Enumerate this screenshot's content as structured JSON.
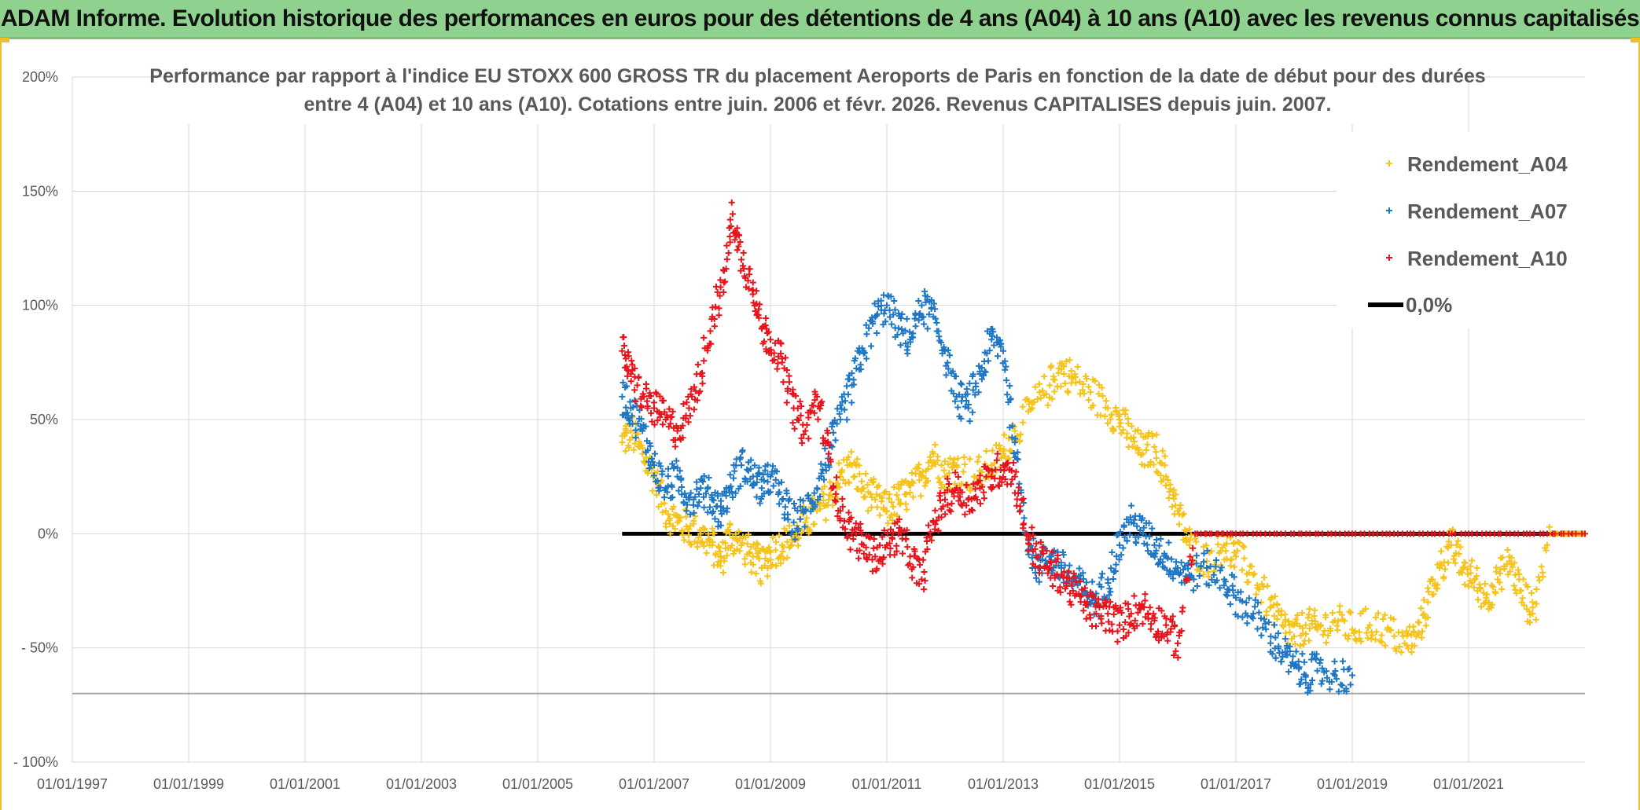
{
  "header": {
    "banner": "ADAM Informe. Evolution historique des performances en euros pour des détentions de 4 ans (A04) à 10 ans (A10) avec les revenus connus capitalisés"
  },
  "colors": {
    "banner_bg": "#8fd18f",
    "a04": "#f5c319",
    "a07": "#1f77c4",
    "a10": "#e8141c",
    "zero": "#000000",
    "grid": "#d9d9d9"
  },
  "chart_data": {
    "type": "scatter",
    "title_lines": [
      "Performance par rapport à l'indice EU STOXX 600 GROSS TR  du placement Aeroports de Paris en fonction de la date de début pour des durées",
      "entre 4 (A04) et 10 ans (A10). Cotations entre juin. 2006 et févr. 2026. Revenus CAPITALISES depuis juin. 2007."
    ],
    "x_range": [
      1997.0,
      2023.0
    ],
    "x_ticks": [
      {
        "value": 1997,
        "label": "01/01/1997"
      },
      {
        "value": 1999,
        "label": "01/01/1999"
      },
      {
        "value": 2001,
        "label": "01/01/2001"
      },
      {
        "value": 2003,
        "label": "01/01/2003"
      },
      {
        "value": 2005,
        "label": "01/01/2005"
      },
      {
        "value": 2007,
        "label": "01/01/2007"
      },
      {
        "value": 2009,
        "label": "01/01/2009"
      },
      {
        "value": 2011,
        "label": "01/01/2011"
      },
      {
        "value": 2013,
        "label": "01/01/2013"
      },
      {
        "value": 2015,
        "label": "01/01/2015"
      },
      {
        "value": 2017,
        "label": "01/01/2017"
      },
      {
        "value": 2019,
        "label": "01/01/2019"
      },
      {
        "value": 2021,
        "label": "01/01/2021"
      }
    ],
    "y_range": [
      -100,
      200
    ],
    "y_ticks": [
      {
        "value": 200,
        "label": "200%"
      },
      {
        "value": 150,
        "label": "150%"
      },
      {
        "value": 100,
        "label": "100%"
      },
      {
        "value": 50,
        "label": "50%"
      },
      {
        "value": 0,
        "label": "0%"
      },
      {
        "value": -50,
        "label": "- 50%"
      },
      {
        "value": -100,
        "label": "- 100%"
      }
    ],
    "extra_hline": -70,
    "legend_position": "top-right",
    "series": [
      {
        "name": "Rendement_A04",
        "color_key": "a04",
        "points": [
          [
            2006.45,
            40
          ],
          [
            2006.6,
            45
          ],
          [
            2006.8,
            35
          ],
          [
            2007.0,
            25
          ],
          [
            2007.2,
            10
          ],
          [
            2007.4,
            5
          ],
          [
            2007.6,
            2
          ],
          [
            2007.8,
            0
          ],
          [
            2008.0,
            -5
          ],
          [
            2008.15,
            -12
          ],
          [
            2008.3,
            0
          ],
          [
            2008.5,
            -5
          ],
          [
            2008.7,
            -10
          ],
          [
            2008.85,
            -15
          ],
          [
            2009.0,
            -8
          ],
          [
            2009.2,
            -5
          ],
          [
            2009.4,
            -2
          ],
          [
            2009.6,
            5
          ],
          [
            2009.8,
            10
          ],
          [
            2010.0,
            15
          ],
          [
            2010.2,
            25
          ],
          [
            2010.4,
            30
          ],
          [
            2010.6,
            20
          ],
          [
            2010.8,
            15
          ],
          [
            2011.0,
            10
          ],
          [
            2011.2,
            15
          ],
          [
            2011.4,
            18
          ],
          [
            2011.6,
            25
          ],
          [
            2011.8,
            35
          ],
          [
            2012.0,
            25
          ],
          [
            2012.2,
            30
          ],
          [
            2012.5,
            25
          ],
          [
            2012.8,
            30
          ],
          [
            2013.0,
            35
          ],
          [
            2013.2,
            45
          ],
          [
            2013.5,
            55
          ],
          [
            2013.8,
            65
          ],
          [
            2014.0,
            72
          ],
          [
            2014.2,
            68
          ],
          [
            2014.5,
            62
          ],
          [
            2014.8,
            55
          ],
          [
            2015.0,
            50
          ],
          [
            2015.2,
            42
          ],
          [
            2015.4,
            35
          ],
          [
            2015.6,
            38
          ],
          [
            2015.8,
            25
          ],
          [
            2016.0,
            10
          ],
          [
            2016.2,
            -5
          ],
          [
            2016.5,
            -12
          ],
          [
            2016.8,
            -5
          ],
          [
            2017.0,
            -10
          ],
          [
            2017.3,
            -18
          ],
          [
            2017.6,
            -32
          ],
          [
            2017.8,
            -40
          ],
          [
            2018.0,
            -45
          ],
          [
            2018.2,
            -40
          ],
          [
            2018.4,
            -42
          ],
          [
            2018.7,
            -38
          ],
          [
            2019.0,
            -42
          ],
          [
            2019.3,
            -40
          ],
          [
            2019.6,
            -42
          ],
          [
            2019.9,
            -48
          ],
          [
            2020.1,
            -45
          ],
          [
            2020.3,
            -30
          ],
          [
            2020.5,
            -15
          ],
          [
            2020.7,
            -5
          ],
          [
            2020.9,
            -15
          ],
          [
            2021.1,
            -20
          ],
          [
            2021.3,
            -28
          ],
          [
            2021.5,
            -20
          ],
          [
            2021.7,
            -12
          ],
          [
            2021.9,
            -25
          ],
          [
            2022.1,
            -35
          ],
          [
            2022.4,
            0
          ],
          [
            2022.7,
            0
          ],
          [
            2023.0,
            0
          ]
        ]
      },
      {
        "name": "Rendement_A07",
        "color_key": "a07",
        "points": [
          [
            2006.45,
            60
          ],
          [
            2006.6,
            55
          ],
          [
            2006.8,
            45
          ],
          [
            2007.0,
            30
          ],
          [
            2007.2,
            20
          ],
          [
            2007.4,
            25
          ],
          [
            2007.6,
            15
          ],
          [
            2007.8,
            20
          ],
          [
            2008.0,
            15
          ],
          [
            2008.15,
            10
          ],
          [
            2008.3,
            20
          ],
          [
            2008.5,
            30
          ],
          [
            2008.7,
            25
          ],
          [
            2008.85,
            20
          ],
          [
            2009.0,
            25
          ],
          [
            2009.2,
            15
          ],
          [
            2009.4,
            5
          ],
          [
            2009.6,
            10
          ],
          [
            2009.8,
            20
          ],
          [
            2010.0,
            35
          ],
          [
            2010.2,
            50
          ],
          [
            2010.4,
            65
          ],
          [
            2010.6,
            80
          ],
          [
            2010.8,
            95
          ],
          [
            2011.0,
            100
          ],
          [
            2011.2,
            90
          ],
          [
            2011.4,
            85
          ],
          [
            2011.6,
            100
          ],
          [
            2011.8,
            95
          ],
          [
            2012.0,
            80
          ],
          [
            2012.2,
            60
          ],
          [
            2012.4,
            55
          ],
          [
            2012.6,
            70
          ],
          [
            2012.8,
            85
          ],
          [
            2013.0,
            80
          ],
          [
            2013.2,
            40
          ],
          [
            2013.4,
            0
          ],
          [
            2013.6,
            -15
          ],
          [
            2013.8,
            -10
          ],
          [
            2014.0,
            -15
          ],
          [
            2014.2,
            -20
          ],
          [
            2014.4,
            -25
          ],
          [
            2014.6,
            -30
          ],
          [
            2014.8,
            -20
          ],
          [
            2015.0,
            -5
          ],
          [
            2015.2,
            5
          ],
          [
            2015.4,
            0
          ],
          [
            2015.6,
            -5
          ],
          [
            2015.8,
            -10
          ],
          [
            2016.0,
            -15
          ],
          [
            2016.2,
            -18
          ],
          [
            2016.5,
            -15
          ],
          [
            2016.8,
            -20
          ],
          [
            2017.0,
            -28
          ],
          [
            2017.3,
            -35
          ],
          [
            2017.6,
            -45
          ],
          [
            2017.8,
            -52
          ],
          [
            2018.0,
            -58
          ],
          [
            2018.2,
            -62
          ],
          [
            2018.4,
            -60
          ],
          [
            2018.7,
            -62
          ],
          [
            2019.0,
            -62
          ]
        ]
      },
      {
        "name": "Rendement_A10",
        "color_key": "a10",
        "points": [
          [
            2006.45,
            80
          ],
          [
            2006.6,
            70
          ],
          [
            2006.8,
            60
          ],
          [
            2007.0,
            55
          ],
          [
            2007.2,
            50
          ],
          [
            2007.4,
            45
          ],
          [
            2007.6,
            55
          ],
          [
            2007.8,
            70
          ],
          [
            2008.0,
            95
          ],
          [
            2008.2,
            110
          ],
          [
            2008.35,
            140
          ],
          [
            2008.5,
            120
          ],
          [
            2008.7,
            110
          ],
          [
            2008.85,
            90
          ],
          [
            2009.0,
            85
          ],
          [
            2009.2,
            75
          ],
          [
            2009.4,
            55
          ],
          [
            2009.6,
            45
          ],
          [
            2009.8,
            60
          ],
          [
            2010.0,
            35
          ],
          [
            2010.2,
            10
          ],
          [
            2010.4,
            0
          ],
          [
            2010.6,
            -5
          ],
          [
            2010.8,
            -10
          ],
          [
            2011.0,
            -5
          ],
          [
            2011.2,
            0
          ],
          [
            2011.4,
            -10
          ],
          [
            2011.6,
            -20
          ],
          [
            2011.8,
            5
          ],
          [
            2012.0,
            15
          ],
          [
            2012.2,
            20
          ],
          [
            2012.4,
            15
          ],
          [
            2012.6,
            20
          ],
          [
            2012.8,
            25
          ],
          [
            2013.0,
            30
          ],
          [
            2013.2,
            25
          ],
          [
            2013.4,
            0
          ],
          [
            2013.6,
            -10
          ],
          [
            2013.8,
            -15
          ],
          [
            2014.0,
            -18
          ],
          [
            2014.2,
            -25
          ],
          [
            2014.4,
            -30
          ],
          [
            2014.6,
            -35
          ],
          [
            2014.8,
            -35
          ],
          [
            2015.0,
            -40
          ],
          [
            2015.2,
            -35
          ],
          [
            2015.4,
            -32
          ],
          [
            2015.6,
            -38
          ],
          [
            2015.8,
            -40
          ],
          [
            2016.0,
            -48
          ],
          [
            2016.3,
            0
          ],
          [
            2017.0,
            0
          ],
          [
            2018.0,
            0
          ],
          [
            2019.0,
            0
          ],
          [
            2020.0,
            0
          ],
          [
            2021.0,
            0
          ],
          [
            2022.0,
            0
          ],
          [
            2023.0,
            0
          ]
        ]
      }
    ],
    "zero_line": {
      "name": "0,0%",
      "x_start": 2006.45,
      "x_end": 2023.0,
      "value": 0
    }
  }
}
